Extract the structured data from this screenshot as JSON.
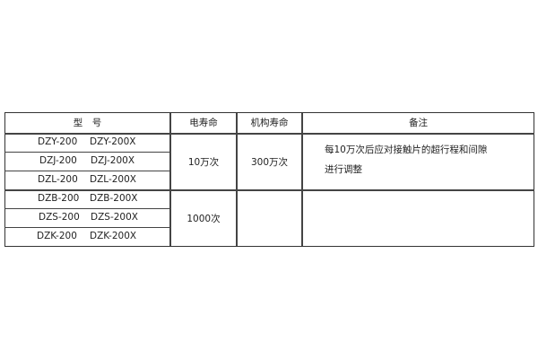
{
  "table": {
    "headers": {
      "model": "型　号",
      "electrical_life": "电寿命",
      "mechanical_life": "机构寿命",
      "remarks": "备注"
    },
    "rows": [
      {
        "model_a": "DZY-200",
        "model_b": "DZY-200X"
      },
      {
        "model_a": "DZJ-200",
        "model_b": "DZJ-200X"
      },
      {
        "model_a": "DZL-200",
        "model_b": "DZL-200X"
      },
      {
        "model_a": "DZB-200",
        "model_b": "DZB-200X"
      },
      {
        "model_a": "DZS-200",
        "model_b": "DZS-200X"
      },
      {
        "model_a": "DZK-200",
        "model_b": "DZK-200X"
      }
    ],
    "groups": [
      {
        "electrical_life": "10万次",
        "mechanical_life": "300万次",
        "remark_line1": "每10万次后应对接触片的超行程和间隙",
        "remark_line2": "进行调整"
      },
      {
        "electrical_life": "1000次",
        "mechanical_life": "",
        "remark_line1": "",
        "remark_line2": ""
      }
    ]
  }
}
